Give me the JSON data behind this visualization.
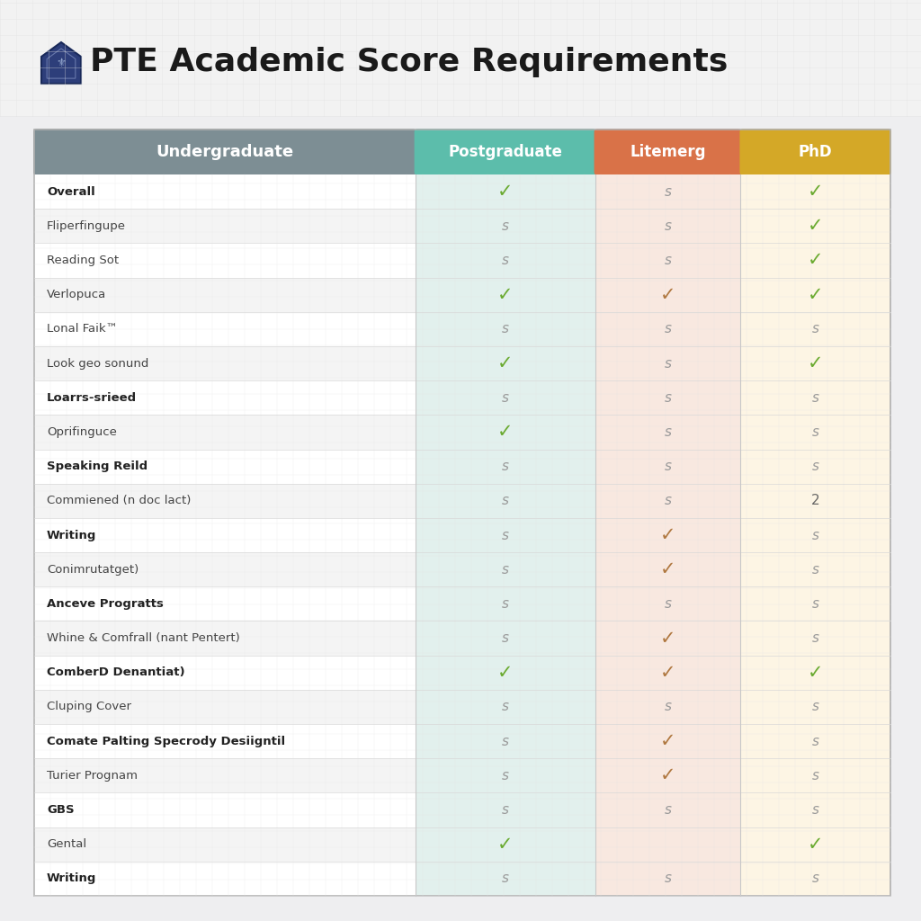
{
  "title": "PTE Academic Score Requirements",
  "columns": [
    "Undergraduate",
    "Postgraduate",
    "Litemerg",
    "PhD"
  ],
  "col_colors": [
    "#7d8e94",
    "#5cbdab",
    "#d97248",
    "#d4a827"
  ],
  "rows": [
    {
      "label": "Overall",
      "bold": true,
      "values": [
        "",
        "✓",
        "s",
        "✓"
      ]
    },
    {
      "label": "Fliperfingupe",
      "bold": false,
      "values": [
        "",
        "s",
        "s",
        "✓"
      ]
    },
    {
      "label": "Reading Sot",
      "bold": false,
      "values": [
        "",
        "s",
        "s",
        "✓"
      ]
    },
    {
      "label": "Verlopuca",
      "bold": false,
      "values": [
        "",
        "✓",
        "✓",
        "✓"
      ]
    },
    {
      "label": "Lonal Faik™",
      "bold": false,
      "values": [
        "",
        "s",
        "s",
        "s"
      ]
    },
    {
      "label": "Look geo sonund",
      "bold": false,
      "values": [
        "",
        "✓",
        "s",
        "✓"
      ]
    },
    {
      "label": "Loarrs-srieed",
      "bold": true,
      "values": [
        "",
        "s",
        "s",
        "s"
      ]
    },
    {
      "label": "Oprifinguce",
      "bold": false,
      "values": [
        "",
        "✓",
        "s",
        "s"
      ]
    },
    {
      "label": "Speaking Reild",
      "bold": true,
      "values": [
        "",
        "s",
        "s",
        "s"
      ]
    },
    {
      "label": "Commiened (n doc lact)",
      "bold": false,
      "values": [
        "",
        "s",
        "s",
        "2"
      ]
    },
    {
      "label": "Writing",
      "bold": true,
      "values": [
        "",
        "s",
        "✓",
        "s"
      ]
    },
    {
      "label": "Conimrutatget)",
      "bold": false,
      "values": [
        "",
        "s",
        "✓",
        "s"
      ]
    },
    {
      "label": "Anceve Progratts",
      "bold": true,
      "values": [
        "",
        "s",
        "s",
        "s"
      ]
    },
    {
      "label": "Whine & Comfrall (nant Pentert)",
      "bold": false,
      "values": [
        "",
        "s",
        "✓",
        "s"
      ]
    },
    {
      "label": "ComberD Denantiat)",
      "bold": true,
      "values": [
        "",
        "✓",
        "✓",
        "✓"
      ]
    },
    {
      "label": "Cluping Cover",
      "bold": false,
      "values": [
        "",
        "s",
        "s",
        "s"
      ]
    },
    {
      "label": "Comate Palting Specrody Desiigntil",
      "bold": true,
      "values": [
        "",
        "s",
        "✓",
        "s"
      ]
    },
    {
      "label": "Turier Prognam",
      "bold": false,
      "values": [
        "",
        "s",
        "✓",
        "s"
      ]
    },
    {
      "label": "GBS",
      "bold": true,
      "values": [
        "",
        "s",
        "s",
        "s"
      ]
    },
    {
      "label": "Gental",
      "bold": false,
      "values": [
        "",
        "✓",
        "",
        "✓"
      ]
    },
    {
      "label": "Writing",
      "bold": true,
      "values": [
        "",
        "s",
        "s",
        "s"
      ]
    }
  ],
  "bg_color": "#eeeef0",
  "table_bg": "#f8f8f8",
  "row_bg_even": "#f4f4f4",
  "row_bg_odd": "#ffffff",
  "col1_bg": "#e2f0ed",
  "col2_bg": "#f8e8e0",
  "col3_bg": "#fdf5e4",
  "check_color_green": "#6aaa30",
  "check_color_brown": "#b07840",
  "s_color": "#999999",
  "num_color": "#666666",
  "grid_color": "#d8d8d8",
  "label_color": "#444444",
  "bold_label_color": "#222222",
  "shield_color": "#2d3e7a"
}
